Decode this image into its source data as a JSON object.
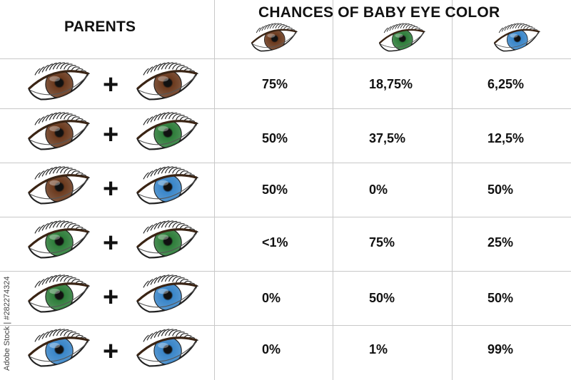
{
  "header": {
    "parents_label": "PARENTS",
    "chances_label": "CHANCES OF BABY EYE COLOR",
    "result_eyes": [
      "brown",
      "green",
      "blue"
    ]
  },
  "colors": {
    "brown": "#6b3a1e",
    "green": "#2e7d3a",
    "blue": "#3a86c9"
  },
  "rows": [
    {
      "parent1": "brown",
      "parent2": "brown",
      "brown": "75%",
      "green": "18,75%",
      "blue": "6,25%"
    },
    {
      "parent1": "brown",
      "parent2": "green",
      "brown": "50%",
      "green": "37,5%",
      "blue": "12,5%"
    },
    {
      "parent1": "brown",
      "parent2": "blue",
      "brown": "50%",
      "green": "0%",
      "blue": "50%"
    },
    {
      "parent1": "green",
      "parent2": "green",
      "brown": "<1%",
      "green": "75%",
      "blue": "25%"
    },
    {
      "parent1": "green",
      "parent2": "blue",
      "brown": "0%",
      "green": "50%",
      "blue": "50%"
    },
    {
      "parent1": "blue",
      "parent2": "blue",
      "brown": "0%",
      "green": "1%",
      "blue": "99%"
    }
  ],
  "plus_sign": "+",
  "watermark": "Adobe Stock | #282274324"
}
